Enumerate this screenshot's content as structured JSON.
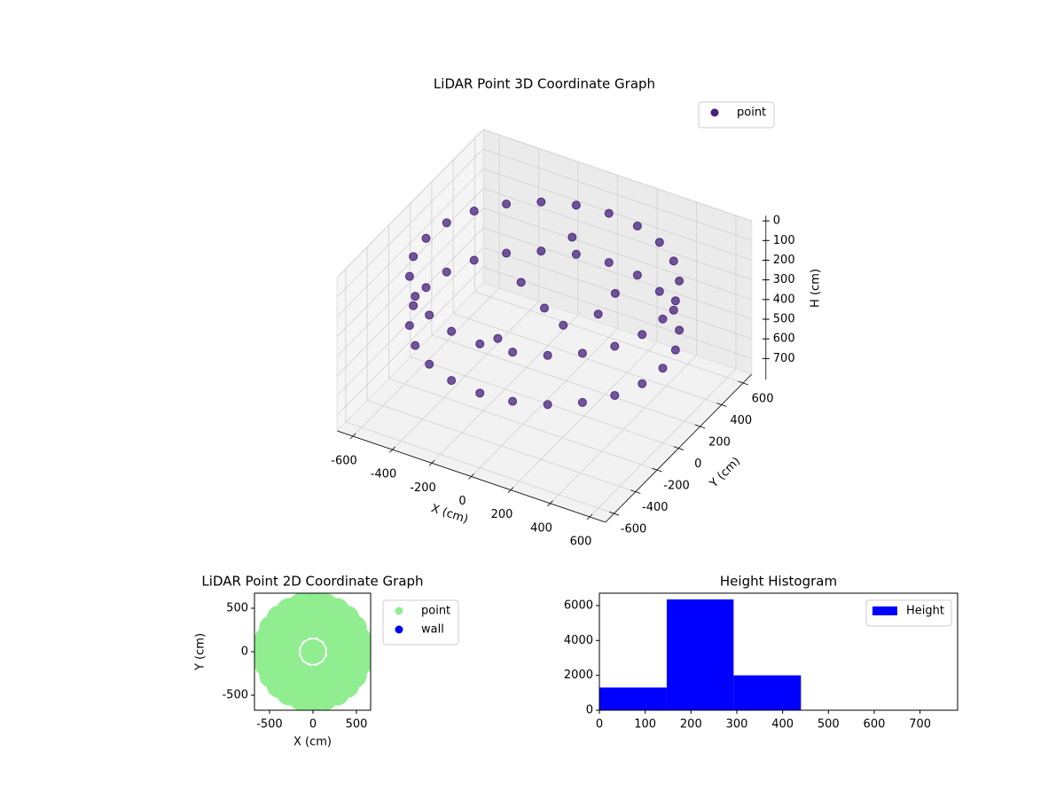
{
  "chart_data": [
    {
      "type": "scatter3d",
      "title": "LiDAR Point 3D Coordinate Graph",
      "xlabel": "X (cm)",
      "ylabel": "Y (cm)",
      "zlabel": "H (cm)",
      "xlim": [
        -680,
        680
      ],
      "ylim": [
        -680,
        680
      ],
      "zlim": [
        0,
        780
      ],
      "z_inverted": true,
      "xticks": [
        -600,
        -400,
        -200,
        0,
        200,
        400,
        600
      ],
      "yticks": [
        -600,
        -400,
        -200,
        0,
        200,
        400,
        600
      ],
      "zticks": [
        0,
        100,
        200,
        300,
        400,
        500,
        600,
        700
      ],
      "grid": true,
      "legend": "upper right",
      "series": [
        {
          "name": "point",
          "color": "#46207a",
          "x": [
            600,
            580,
            520,
            424,
            300,
            155,
            0,
            -155,
            -300,
            -424,
            -520,
            -580,
            -600,
            -580,
            -520,
            -424,
            -300,
            -155,
            0,
            155,
            300,
            424,
            520,
            580,
            600,
            580,
            520,
            424,
            300,
            155,
            0,
            -155,
            -300,
            -424,
            -520,
            -580,
            -600,
            -580,
            -520,
            -424,
            -300,
            -155,
            0,
            155,
            300,
            424,
            520,
            580,
            0,
            150,
            -200,
            250,
            -100,
            300,
            -50
          ],
          "y": [
            0,
            155,
            300,
            424,
            520,
            580,
            600,
            580,
            520,
            424,
            300,
            155,
            0,
            -155,
            -300,
            -424,
            -520,
            -580,
            -600,
            -580,
            -520,
            -424,
            -300,
            -155,
            0,
            155,
            300,
            424,
            520,
            580,
            600,
            580,
            520,
            424,
            300,
            155,
            0,
            -155,
            -300,
            -424,
            -520,
            -580,
            -600,
            -580,
            -520,
            -424,
            -300,
            -155,
            0,
            -100,
            150,
            200,
            -250,
            -50,
            350
          ],
          "z": [
            150,
            150,
            150,
            150,
            150,
            150,
            150,
            150,
            150,
            150,
            150,
            150,
            150,
            150,
            150,
            150,
            150,
            150,
            150,
            150,
            150,
            150,
            150,
            150,
            400,
            400,
            400,
            400,
            400,
            400,
            400,
            400,
            400,
            400,
            400,
            400,
            400,
            400,
            400,
            400,
            400,
            400,
            400,
            400,
            400,
            400,
            400,
            400,
            300,
            280,
            320,
            250,
            350,
            200,
            150
          ]
        }
      ]
    },
    {
      "type": "scatter",
      "title": "LiDAR Point 2D Coordinate Graph",
      "xlabel": "X (cm)",
      "ylabel": "Y (cm)",
      "xlim": [
        -673,
        663
      ],
      "ylim": [
        -673,
        673
      ],
      "xticks": [
        -500,
        0,
        500
      ],
      "yticks": [
        -500,
        0,
        500
      ],
      "legend": "right",
      "series": [
        {
          "name": "point",
          "color": "#90ee90",
          "x": [
            550,
            531,
            476,
            389,
            275,
            142,
            0,
            -142,
            -275,
            -389,
            -476,
            -531,
            -550,
            -531,
            -476,
            -389,
            -275,
            -142,
            0,
            142,
            275,
            389,
            476,
            531,
            300,
            260,
            150,
            0,
            -150,
            -260,
            -300,
            -260,
            -150,
            0,
            150,
            260,
            0
          ],
          "y": [
            0,
            142,
            275,
            389,
            476,
            531,
            550,
            531,
            476,
            389,
            275,
            142,
            0,
            -142,
            -275,
            -389,
            -476,
            -531,
            -550,
            -531,
            -476,
            -389,
            -275,
            -142,
            0,
            150,
            260,
            300,
            260,
            150,
            0,
            -150,
            -260,
            -300,
            -260,
            -150,
            0
          ]
        },
        {
          "name": "wall",
          "color": "#0000ff",
          "x": [],
          "y": []
        }
      ]
    },
    {
      "type": "histogram",
      "title": "Height Histogram",
      "bins": [
        0,
        147,
        293,
        440,
        587,
        733,
        880
      ],
      "series": [
        {
          "name": "Height",
          "color": "#0000ff",
          "values": [
            1300,
            6350,
            2000,
            0,
            0,
            0
          ]
        }
      ],
      "xlim": [
        0,
        782
      ],
      "ylim": [
        0,
        6710
      ],
      "xticks": [
        0,
        100,
        200,
        300,
        400,
        500,
        600,
        700
      ],
      "yticks": [
        0,
        2000,
        4000,
        6000
      ],
      "legend": "upper right"
    }
  ]
}
